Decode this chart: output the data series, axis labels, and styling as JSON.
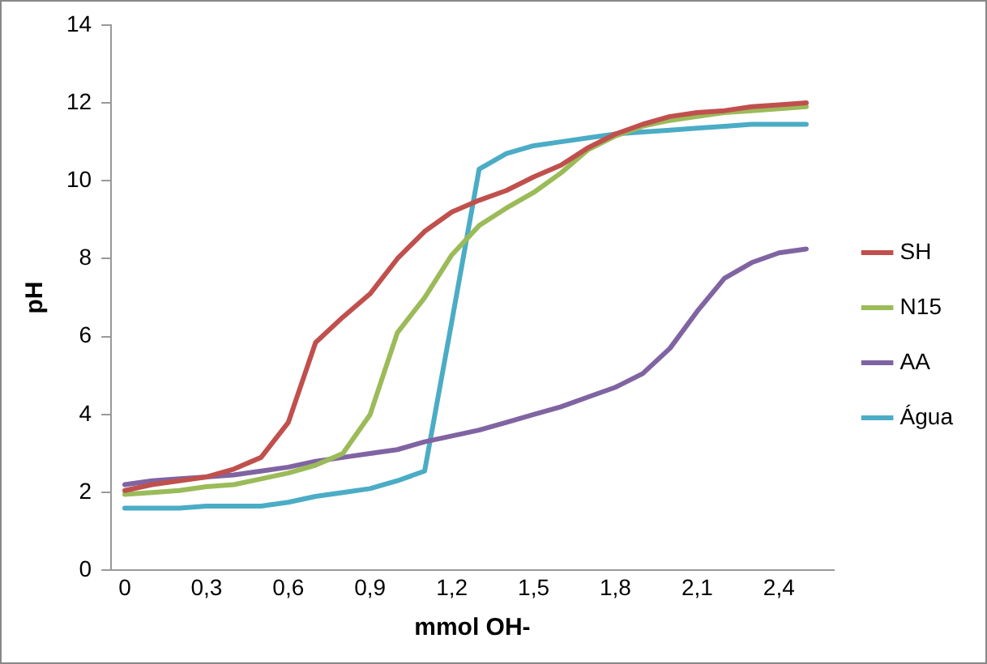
{
  "chart_data": {
    "type": "line",
    "xlabel": "mmol OH-",
    "ylabel": "pH",
    "x": [
      0,
      0.1,
      0.2,
      0.3,
      0.4,
      0.5,
      0.6,
      0.7,
      0.8,
      0.9,
      1.0,
      1.1,
      1.2,
      1.3,
      1.4,
      1.5,
      1.6,
      1.7,
      1.8,
      1.9,
      2.0,
      2.1,
      2.2,
      2.3,
      2.4,
      2.5
    ],
    "series": [
      {
        "name": "SH",
        "color": "#c0504d",
        "values": [
          2.05,
          2.2,
          2.3,
          2.4,
          2.6,
          2.9,
          3.8,
          5.85,
          6.5,
          7.1,
          8.0,
          8.7,
          9.2,
          9.5,
          9.75,
          10.1,
          10.4,
          10.85,
          11.2,
          11.45,
          11.65,
          11.75,
          11.8,
          11.9,
          11.95,
          12.0
        ]
      },
      {
        "name": "N15",
        "color": "#9bbb59",
        "values": [
          1.95,
          2.0,
          2.05,
          2.15,
          2.2,
          2.35,
          2.5,
          2.7,
          3.0,
          4.0,
          6.1,
          7.0,
          8.1,
          8.85,
          9.3,
          9.7,
          10.2,
          10.8,
          11.15,
          11.4,
          11.55,
          11.65,
          11.75,
          11.8,
          11.85,
          11.9
        ]
      },
      {
        "name": "AA",
        "color": "#8064a2",
        "values": [
          2.2,
          2.3,
          2.35,
          2.4,
          2.45,
          2.55,
          2.65,
          2.8,
          2.9,
          3.0,
          3.1,
          3.3,
          3.45,
          3.6,
          3.8,
          4.0,
          4.2,
          4.45,
          4.7,
          5.05,
          5.7,
          6.65,
          7.5,
          7.9,
          8.15,
          8.25
        ]
      },
      {
        "name": "Água",
        "color": "#4bacc6",
        "values": [
          1.6,
          1.6,
          1.6,
          1.65,
          1.65,
          1.65,
          1.75,
          1.9,
          2.0,
          2.1,
          2.3,
          2.55,
          6.4,
          10.3,
          10.7,
          10.9,
          11.0,
          11.1,
          11.2,
          11.25,
          11.3,
          11.35,
          11.4,
          11.45,
          11.45,
          11.45
        ]
      }
    ],
    "xlim": [
      -0.05,
      2.6
    ],
    "xticks": [
      0,
      {
        "value": 0.3,
        "label": "0,3"
      },
      {
        "value": 0.6,
        "label": "0,6"
      },
      {
        "value": 0.9,
        "label": "0,9"
      },
      {
        "value": 1.2,
        "label": "1,2"
      },
      {
        "value": 1.5,
        "label": "1,5"
      },
      {
        "value": 1.8,
        "label": "1,8"
      },
      {
        "value": 2.1,
        "label": "2,1"
      },
      {
        "value": 2.4,
        "label": "2,4"
      }
    ],
    "ylim": [
      0,
      14
    ],
    "yticks": [
      0,
      2,
      4,
      6,
      8,
      10,
      12,
      14
    ],
    "grid": false,
    "legend": "right",
    "marker": "none",
    "line_style": "solid"
  }
}
